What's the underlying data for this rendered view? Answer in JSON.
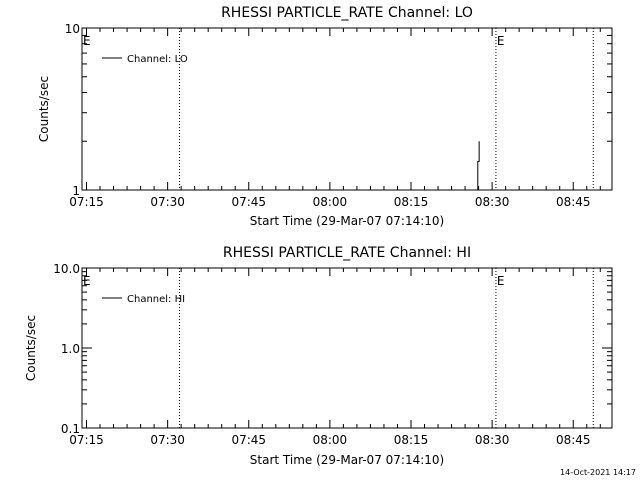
{
  "chart_data": [
    {
      "type": "line",
      "title": "RHESSI PARTICLE_RATE Channel: LO",
      "xlabel": "Start Time (29-Mar-07 07:14:10)",
      "ylabel": "Counts/sec",
      "x_tick_labels": [
        "07:15",
        "07:30",
        "07:45",
        "08:00",
        "08:15",
        "08:30",
        "08:45"
      ],
      "x_ticks_min": [
        15,
        30,
        45,
        60,
        75,
        90,
        105
      ],
      "xlim_min": [
        14.1667,
        112.1667
      ],
      "yscale": "log",
      "ylim": [
        1,
        10
      ],
      "y_tick_labels": [
        "1",
        "10"
      ],
      "y_ticks": [
        1,
        10
      ],
      "legend": "Channel: LO",
      "legend_position": "top-left",
      "grid": false,
      "markers": [
        {
          "label": "E",
          "x_min": 14.1667
        },
        {
          "label": "",
          "x_min": 32.2
        },
        {
          "label": "E",
          "x_min": 90.7
        },
        {
          "label": "",
          "x_min": 108.7
        }
      ],
      "series": [
        {
          "name": "Channel: LO",
          "x_min": [
            87.35,
            87.35,
            87.6,
            87.6
          ],
          "y": [
            1.0,
            1.5,
            1.5,
            2.0
          ]
        }
      ]
    },
    {
      "type": "line",
      "title": "RHESSI PARTICLE_RATE Channel: HI",
      "xlabel": "Start Time (29-Mar-07 07:14:10)",
      "ylabel": "Counts/sec",
      "x_tick_labels": [
        "07:15",
        "07:30",
        "07:45",
        "08:00",
        "08:15",
        "08:30",
        "08:45"
      ],
      "x_ticks_min": [
        15,
        30,
        45,
        60,
        75,
        90,
        105
      ],
      "xlim_min": [
        14.1667,
        112.1667
      ],
      "yscale": "log",
      "ylim": [
        0.1,
        10
      ],
      "y_tick_labels": [
        "0.1",
        "1.0",
        "10.0"
      ],
      "y_ticks": [
        0.1,
        1,
        10
      ],
      "legend": "Channel: HI",
      "legend_position": "top-left",
      "grid": false,
      "markers": [
        {
          "label": "E",
          "x_min": 14.1667
        },
        {
          "label": "",
          "x_min": 32.2
        },
        {
          "label": "E",
          "x_min": 90.7
        },
        {
          "label": "",
          "x_min": 108.7
        }
      ],
      "series": [
        {
          "name": "Channel: HI",
          "x_min": [],
          "y": []
        }
      ]
    }
  ],
  "footer": {
    "timestamp": "14-Oct-2021 14:17"
  }
}
